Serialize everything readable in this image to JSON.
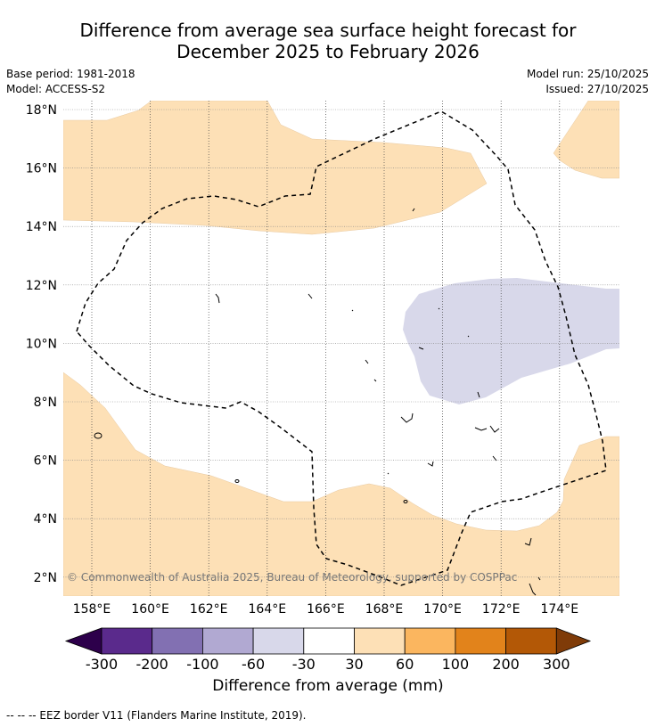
{
  "header": {
    "title_line1": "Difference from average sea surface height forecast for",
    "title_line2": "December 2025 to February 2026",
    "base_period": "Base period: 1981-2018",
    "model": "Model: ACCESS-S2",
    "model_run": "Model run: 25/10/2025",
    "issued": "Issued: 27/10/2025"
  },
  "map": {
    "lat_labels": [
      "18°N",
      "16°N",
      "14°N",
      "12°N",
      "10°N",
      "8°N",
      "6°N",
      "4°N",
      "2°N"
    ],
    "lat_values": [
      18,
      16,
      14,
      12,
      10,
      8,
      6,
      4,
      2
    ],
    "lon_labels": [
      "158°E",
      "160°E",
      "162°E",
      "164°E",
      "166°E",
      "168°E",
      "170°E",
      "172°E",
      "174°E"
    ],
    "lon_values": [
      158,
      160,
      162,
      164,
      166,
      168,
      170,
      172,
      174
    ],
    "copyright": "© Commonwealth of Australia 2025, Bureau of Meteorology, supported by COSPPac",
    "colors": {
      "positive_30_60": "#fde0b6",
      "negative_30_60": "#d8d8ea",
      "grid": "#888888",
      "eez": "#000000"
    }
  },
  "colorbar": {
    "tick_labels": [
      "-300",
      "-200",
      "-100",
      "-60",
      "-30",
      "30",
      "60",
      "100",
      "200",
      "300"
    ],
    "colors": [
      "#2d004b",
      "#5a2a8c",
      "#8270b2",
      "#b1a9d2",
      "#d8d8ea",
      "#ffffff",
      "#fde0b6",
      "#fbb65f",
      "#e2831b",
      "#b35806",
      "#7f3b08"
    ],
    "label": "Difference from average (mm)"
  },
  "footer": {
    "eez_note": "-- -- -- EEZ border V11 (Flanders Marine Institute, 2019)."
  }
}
